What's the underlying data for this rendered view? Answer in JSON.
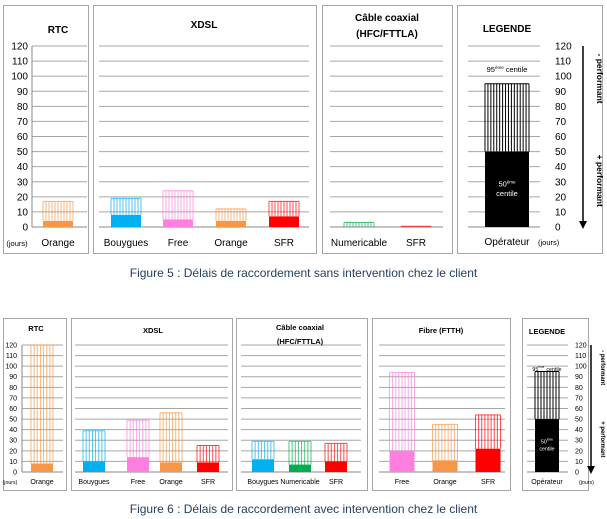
{
  "chart_data": [
    {
      "type": "bar",
      "title": "Figure 5 : Délais de raccordement sans intervention chez le client",
      "ylabel": "(jours)",
      "ylim": [
        0,
        120
      ],
      "yticks": [
        "0",
        "10",
        "20",
        "30",
        "40",
        "50",
        "60",
        "70",
        "80",
        "90",
        "100",
        "110",
        "120"
      ],
      "grid": true,
      "series_meaning": {
        "solid": "50ème centile",
        "hatched": "95ème centile"
      },
      "panels": [
        {
          "title": [
            "RTC"
          ],
          "bars": [
            {
              "label": "Orange",
              "median": 4,
              "p95": 17,
              "color": "#f79646"
            }
          ]
        },
        {
          "title": [
            "XDSL"
          ],
          "bars": [
            {
              "label": "Bouygues",
              "median": 8,
              "p95": 19,
              "color": "#00b0f0"
            },
            {
              "label": "Free",
              "median": 5,
              "p95": 24,
              "color": "#ff7fe0"
            },
            {
              "label": "Orange",
              "median": 4,
              "p95": 12,
              "color": "#f79646"
            },
            {
              "label": "SFR",
              "median": 7,
              "p95": 17,
              "color": "#ff0000"
            }
          ]
        },
        {
          "title": [
            "Câble coaxial",
            "(HFC/FTTLA)"
          ],
          "bars": [
            {
              "label": "Numericable",
              "median": 0,
              "p95": 3,
              "color": "#00b050"
            },
            {
              "label": "SFR",
              "median": 0,
              "p95": 0.5,
              "color": "#ff0000"
            }
          ]
        }
      ],
      "legend": {
        "title": "LEGENDE",
        "label": "Opérateur",
        "unit": "(jours)",
        "median": 50,
        "p95": 95,
        "p95_num": "95",
        "p50_num": "50",
        "sup": "ème",
        "word": "centile",
        "less": "- performant",
        "more": "+ performant",
        "color": "#000000"
      }
    },
    {
      "type": "bar",
      "title": "Figure 6 : Délais de raccordement avec intervention chez le client",
      "ylabel": "(jours)",
      "ylim": [
        0,
        120
      ],
      "yticks": [
        "0",
        "10",
        "20",
        "30",
        "40",
        "50",
        "60",
        "70",
        "80",
        "90",
        "100",
        "110",
        "120"
      ],
      "grid": true,
      "series_meaning": {
        "solid": "50ème centile",
        "hatched": "95ème centile"
      },
      "panels": [
        {
          "title": [
            "RTC"
          ],
          "bars": [
            {
              "label": "Orange",
              "median": 8,
              "p95": 120,
              "color": "#f79646"
            }
          ]
        },
        {
          "title": [
            "XDSL"
          ],
          "bars": [
            {
              "label": "Bouygues",
              "median": 10,
              "p95": 39,
              "color": "#00b0f0"
            },
            {
              "label": "Free",
              "median": 14,
              "p95": 49,
              "color": "#ff7fe0"
            },
            {
              "label": "Orange",
              "median": 9,
              "p95": 56,
              "color": "#f79646"
            },
            {
              "label": "SFR",
              "median": 9,
              "p95": 25,
              "color": "#ff0000"
            }
          ]
        },
        {
          "title": [
            "Câble coaxial",
            "(HFC/FTTLA)"
          ],
          "bars": [
            {
              "label": "Bouygues",
              "median": 12,
              "p95": 29,
              "color": "#00b0f0"
            },
            {
              "label": "Numericable",
              "median": 7,
              "p95": 29,
              "color": "#00b050"
            },
            {
              "label": "SFR",
              "median": 10,
              "p95": 27,
              "color": "#ff0000"
            }
          ]
        },
        {
          "title": [
            "Fibre (FTTH)"
          ],
          "bars": [
            {
              "label": "Free",
              "median": 20,
              "p95": 94,
              "color": "#ff7fe0"
            },
            {
              "label": "Orange",
              "median": 11,
              "p95": 45,
              "color": "#f79646"
            },
            {
              "label": "SFR",
              "median": 22,
              "p95": 54,
              "color": "#ff0000"
            }
          ]
        }
      ],
      "legend": {
        "title": "LEGENDE",
        "label": "Opérateur",
        "unit": "(jours)",
        "median": 50,
        "p95": 95,
        "p95_num": "95",
        "p50_num": "50",
        "sup": "ème",
        "word": "centile",
        "less": "- performant",
        "more": "+ performant",
        "color": "#000000"
      }
    }
  ]
}
